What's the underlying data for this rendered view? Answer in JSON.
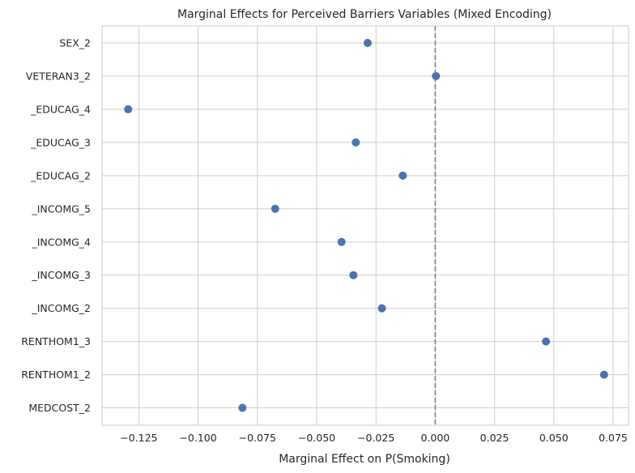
{
  "chart_data": {
    "type": "scatter",
    "title": "Marginal Effects for Perceived Barriers Variables (Mixed Encoding)",
    "xlabel": "Marginal Effect on P(Smoking)",
    "ylabel": "",
    "xlim": [
      -0.1405,
      0.0815
    ],
    "xticks": [
      -0.125,
      -0.1,
      -0.075,
      -0.05,
      -0.025,
      0.0,
      0.025,
      0.05,
      0.075
    ],
    "xtick_labels": [
      "−0.125",
      "−0.100",
      "−0.075",
      "−0.050",
      "−0.025",
      "0.000",
      "0.025",
      "0.050",
      "0.075"
    ],
    "grid": true,
    "reference_line": {
      "x": 0,
      "style": "dashed",
      "color": "#808080"
    },
    "point_color": "#4c72b0",
    "categories": [
      "SEX_2",
      "VETERAN3_2",
      "_EDUCAG_4",
      "_EDUCAG_3",
      "_EDUCAG_2",
      "_INCOMG_5",
      "_INCOMG_4",
      "_INCOMG_3",
      "_INCOMG_2",
      "RENTHOM1_3",
      "RENTHOM1_2",
      "MEDCOST_2"
    ],
    "values": [
      -0.0285,
      0.0003,
      -0.1295,
      -0.0335,
      -0.0137,
      -0.0675,
      -0.0395,
      -0.0345,
      -0.0225,
      0.0467,
      0.0712,
      -0.0813
    ]
  }
}
